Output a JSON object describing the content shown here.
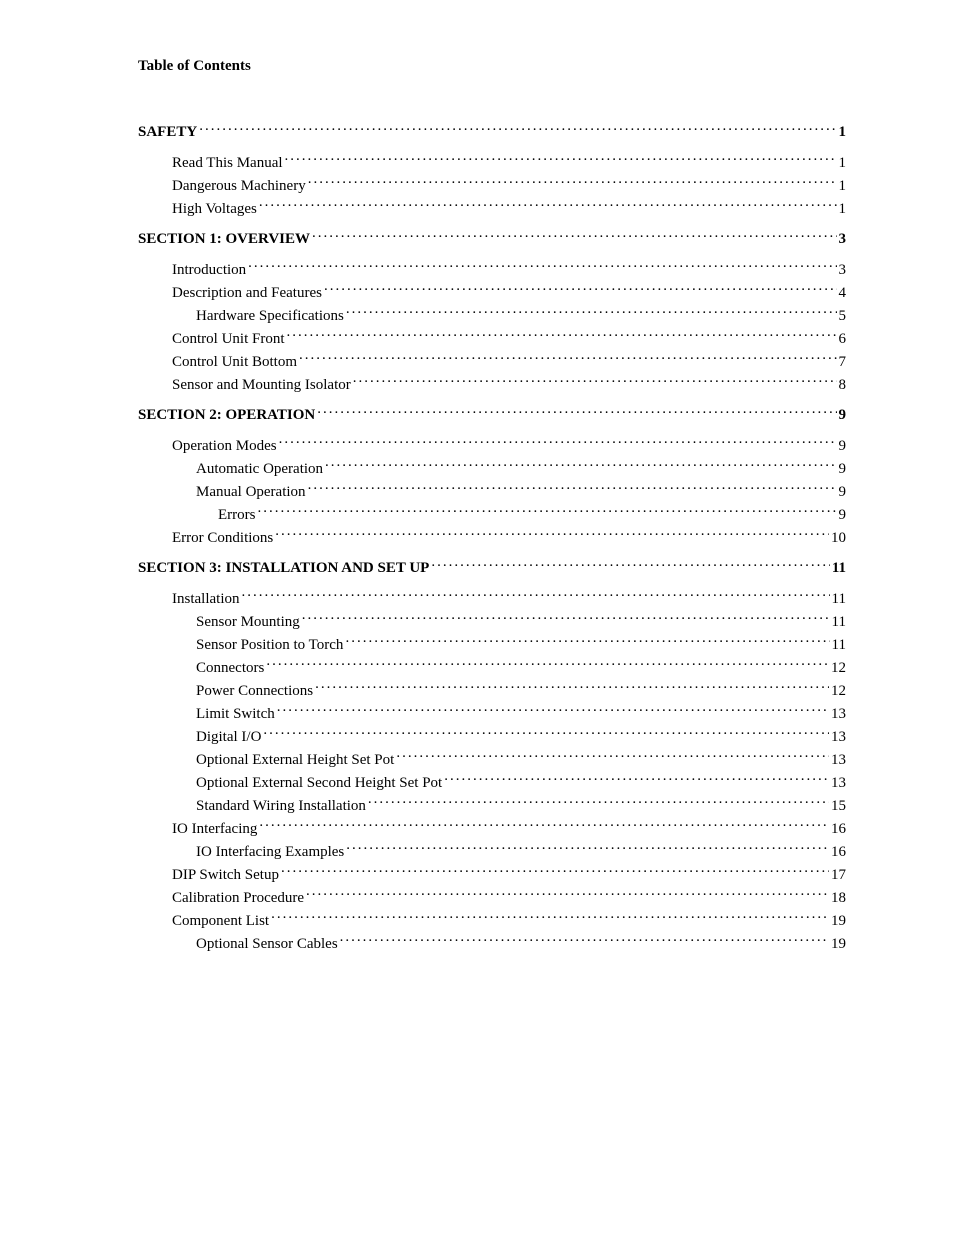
{
  "header": "Table of Contents",
  "entries": [
    {
      "label": "SAFETY",
      "page": "1",
      "indent": 0,
      "section": true,
      "gap": false
    },
    {
      "label": "Read This Manual",
      "page": "1",
      "indent": 1,
      "section": false,
      "gap": true
    },
    {
      "label": "Dangerous Machinery",
      "page": "1",
      "indent": 1,
      "section": false,
      "gap": false
    },
    {
      "label": "High Voltages",
      "page": "1",
      "indent": 1,
      "section": false,
      "gap": false
    },
    {
      "label": "SECTION 1: OVERVIEW",
      "page": "3",
      "indent": 0,
      "section": true,
      "gap": false
    },
    {
      "label": "Introduction",
      "page": "3",
      "indent": 1,
      "section": false,
      "gap": true
    },
    {
      "label": "Description and Features",
      "page": "4",
      "indent": 1,
      "section": false,
      "gap": false
    },
    {
      "label": "Hardware Specifications",
      "page": "5",
      "indent": 2,
      "section": false,
      "gap": false
    },
    {
      "label": "Control Unit Front",
      "page": "6",
      "indent": 1,
      "section": false,
      "gap": false
    },
    {
      "label": "Control Unit Bottom",
      "page": "7",
      "indent": 1,
      "section": false,
      "gap": false
    },
    {
      "label": "Sensor and Mounting Isolator",
      "page": "8",
      "indent": 1,
      "section": false,
      "gap": false
    },
    {
      "label": "SECTION 2: OPERATION",
      "page": "9",
      "indent": 0,
      "section": true,
      "gap": false
    },
    {
      "label": "Operation Modes",
      "page": "9",
      "indent": 1,
      "section": false,
      "gap": true
    },
    {
      "label": "Automatic Operation",
      "page": "9",
      "indent": 2,
      "section": false,
      "gap": false
    },
    {
      "label": "Manual Operation",
      "page": "9",
      "indent": 2,
      "section": false,
      "gap": false
    },
    {
      "label": "Errors",
      "page": "9",
      "indent": 3,
      "section": false,
      "gap": false
    },
    {
      "label": "Error Conditions",
      "page": "10",
      "indent": 1,
      "section": false,
      "gap": false
    },
    {
      "label": "SECTION 3: INSTALLATION AND SET UP",
      "page": "11",
      "indent": 0,
      "section": true,
      "gap": false
    },
    {
      "label": "Installation",
      "page": "11",
      "indent": 1,
      "section": false,
      "gap": true
    },
    {
      "label": "Sensor Mounting",
      "page": "11",
      "indent": 2,
      "section": false,
      "gap": false
    },
    {
      "label": "Sensor Position to Torch",
      "page": "11",
      "indent": 2,
      "section": false,
      "gap": false
    },
    {
      "label": "Connectors",
      "page": "12",
      "indent": 2,
      "section": false,
      "gap": false
    },
    {
      "label": "Power Connections",
      "page": "12",
      "indent": 2,
      "section": false,
      "gap": false
    },
    {
      "label": "Limit Switch",
      "page": "13",
      "indent": 2,
      "section": false,
      "gap": false
    },
    {
      "label": "Digital I/O",
      "page": "13",
      "indent": 2,
      "section": false,
      "gap": false
    },
    {
      "label": "Optional External Height Set Pot",
      "page": "13",
      "indent": 2,
      "section": false,
      "gap": false
    },
    {
      "label": "Optional External Second Height Set Pot",
      "page": "13",
      "indent": 2,
      "section": false,
      "gap": false
    },
    {
      "label": "Standard Wiring Installation",
      "page": "15",
      "indent": 2,
      "section": false,
      "gap": false
    },
    {
      "label": "IO Interfacing",
      "page": "16",
      "indent": 1,
      "section": false,
      "gap": false
    },
    {
      "label": "IO Interfacing Examples",
      "page": "16",
      "indent": 2,
      "section": false,
      "gap": false
    },
    {
      "label": "DIP Switch Setup",
      "page": "17",
      "indent": 1,
      "section": false,
      "gap": false
    },
    {
      "label": "Calibration Procedure",
      "page": "18",
      "indent": 1,
      "section": false,
      "gap": false
    },
    {
      "label": "Component List",
      "page": "19",
      "indent": 1,
      "section": false,
      "gap": false
    },
    {
      "label": "Optional Sensor Cables",
      "page": "19",
      "indent": 2,
      "section": false,
      "gap": false
    }
  ]
}
